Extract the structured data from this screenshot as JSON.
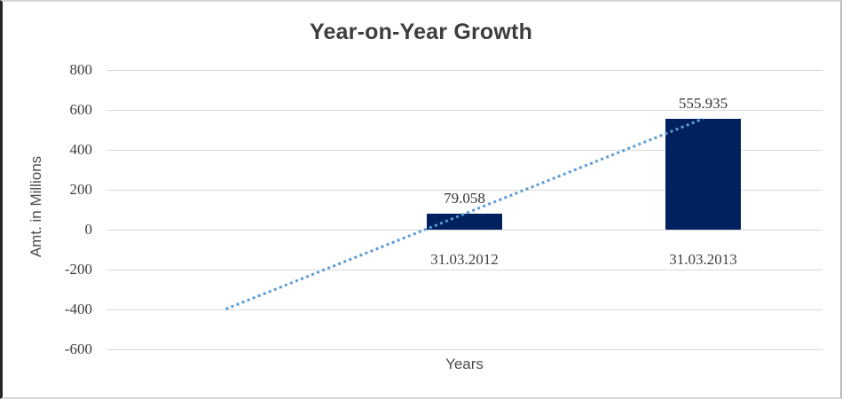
{
  "chart_data": {
    "type": "bar",
    "title": "Year-on-Year Growth",
    "xlabel": "Years",
    "ylabel": "Amt. in Millions",
    "categories": [
      "",
      "31.03.2012",
      "31.03.2013"
    ],
    "values": [
      null,
      79.058,
      555.935
    ],
    "data_labels": [
      null,
      "79.058",
      "555.935"
    ],
    "yticks": [
      800,
      600,
      400,
      200,
      0,
      -200,
      -400,
      -600
    ],
    "ylim": [
      -600,
      800
    ],
    "grid": true,
    "legend": "none",
    "bar_color": "#002060",
    "gridline_color": "#d9d9d9",
    "trendline": {
      "type": "linear",
      "style": "dotted",
      "color": "#5b9bd5",
      "start": {
        "category_index": 0,
        "value": -397.819
      },
      "end": {
        "category_index": 2,
        "value": 555.935
      }
    }
  }
}
